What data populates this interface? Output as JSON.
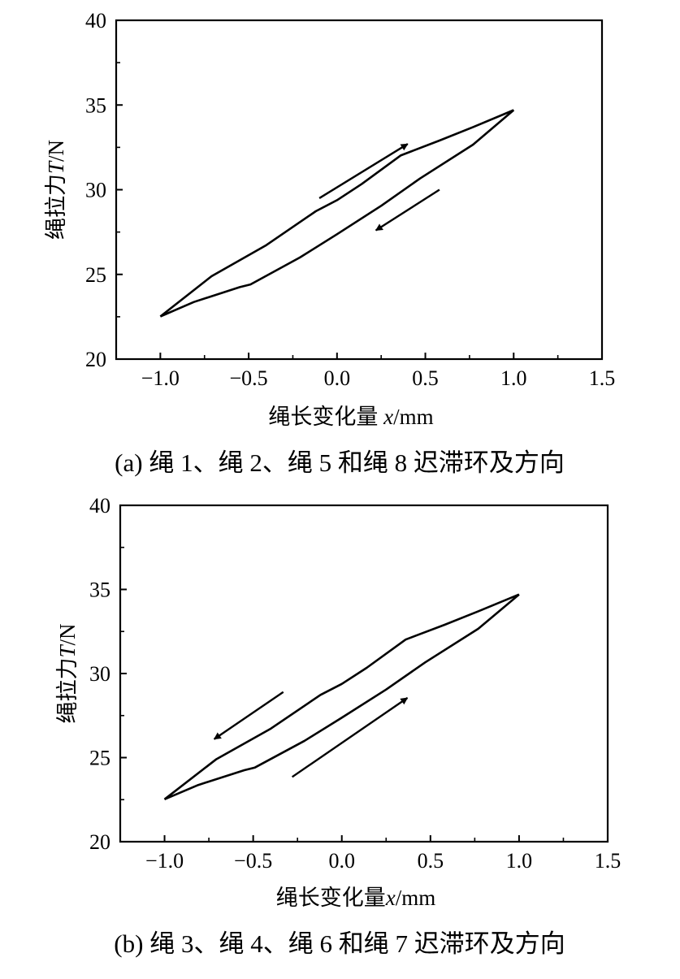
{
  "chart_data": [
    {
      "type": "line",
      "id": "a",
      "caption": "(a) 绳 1、绳 2、绳 5 和绳 8 迟滞环及方向",
      "xlabel_prefix": "绳长变化量 ",
      "xlabel_var": "x",
      "xlabel_unit": "/mm",
      "ylabel_prefix": "绳拉力",
      "ylabel_var": "T",
      "ylabel_unit": "/N",
      "xlim": [
        -1.25,
        1.5
      ],
      "ylim": [
        20,
        40
      ],
      "xticks": [
        -1.0,
        -0.5,
        0.0,
        0.5,
        1.0,
        1.5
      ],
      "xtick_labels": [
        "−1.0",
        "−0.5",
        "0.0",
        "0.5",
        "1.0",
        "1.5"
      ],
      "yticks": [
        20,
        25,
        30,
        35,
        40
      ],
      "ytick_labels": [
        "20",
        "25",
        "30",
        "35",
        "40"
      ],
      "grid": false,
      "series": [
        {
          "name": "upper-branch",
          "x": [
            -1,
            -0.71,
            -0.4,
            -0.12,
            0,
            0.14,
            0.36,
            0.42,
            0.58,
            0.77,
            1
          ],
          "y": [
            22.52,
            24.89,
            26.73,
            28.73,
            29.38,
            30.34,
            32.02,
            32.26,
            32.9,
            33.7,
            34.7
          ]
        },
        {
          "name": "lower-branch",
          "x": [
            1,
            0.77,
            0.47,
            0.25,
            0,
            -0.21,
            -0.49,
            -0.55,
            -0.81,
            -1
          ],
          "y": [
            34.7,
            32.66,
            30.66,
            29.05,
            27.37,
            26.0,
            24.41,
            24.25,
            23.37,
            22.52
          ]
        }
      ],
      "arrows": [
        {
          "from": [
            -0.1,
            29.5
          ],
          "to": [
            0.4,
            32.7
          ]
        },
        {
          "from": [
            0.58,
            30.0
          ],
          "to": [
            0.22,
            27.6
          ]
        }
      ]
    },
    {
      "type": "line",
      "id": "b",
      "caption": "(b) 绳 3、绳 4、绳 6 和绳 7 迟滞环及方向",
      "xlabel_prefix": "绳长变化量",
      "xlabel_var": "x",
      "xlabel_unit": "/mm",
      "ylabel_prefix": "绳拉力",
      "ylabel_var": "T",
      "ylabel_unit": "/N",
      "xlim": [
        -1.25,
        1.5
      ],
      "ylim": [
        20,
        40
      ],
      "xticks": [
        -1.0,
        -0.5,
        0.0,
        0.5,
        1.0,
        1.5
      ],
      "xtick_labels": [
        "−1.0",
        "−0.5",
        "0.0",
        "0.5",
        "1.0",
        "1.5"
      ],
      "yticks": [
        20,
        25,
        30,
        35,
        40
      ],
      "ytick_labels": [
        "20",
        "25",
        "30",
        "35",
        "40"
      ],
      "grid": false,
      "series": [
        {
          "name": "upper-branch",
          "x": [
            -1,
            -0.71,
            -0.4,
            -0.12,
            0,
            0.14,
            0.36,
            0.42,
            0.58,
            0.77,
            1
          ],
          "y": [
            22.52,
            24.89,
            26.73,
            28.73,
            29.38,
            30.34,
            32.02,
            32.26,
            32.9,
            33.7,
            34.7
          ]
        },
        {
          "name": "lower-branch",
          "x": [
            1,
            0.77,
            0.47,
            0.25,
            0,
            -0.21,
            -0.49,
            -0.55,
            -0.81,
            -1
          ],
          "y": [
            34.7,
            32.66,
            30.66,
            29.05,
            27.37,
            26.0,
            24.41,
            24.25,
            23.37,
            22.52
          ]
        }
      ],
      "arrows": [
        {
          "from": [
            -0.33,
            28.9
          ],
          "to": [
            -0.72,
            26.1
          ]
        },
        {
          "from": [
            -0.28,
            23.85
          ],
          "to": [
            0.37,
            28.55
          ]
        }
      ]
    }
  ]
}
